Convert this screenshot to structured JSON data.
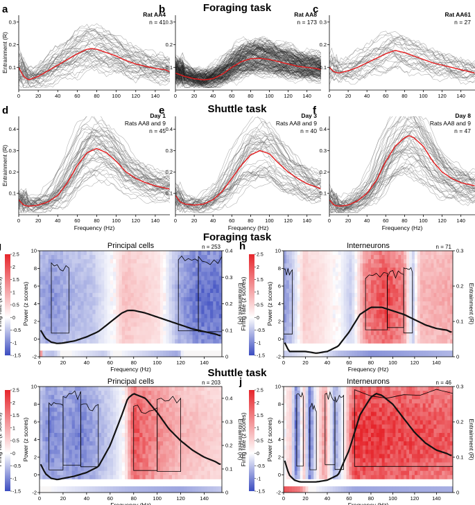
{
  "sections": {
    "foraging_top": "Foraging task",
    "shuttle_top": "Shuttle task",
    "foraging_heat": "Foraging task",
    "shuttle_heat": "Shuttle task"
  },
  "chart_data": [
    {
      "id": "a",
      "type": "line",
      "panel_letter": "a",
      "title_lines": [
        "Rat AA4",
        "n = 41"
      ],
      "xlabel": "",
      "ylabel": "Entrainment (R)",
      "xlim": [
        0,
        155
      ],
      "ylim": [
        0,
        0.33
      ],
      "xticks": [
        0,
        20,
        40,
        60,
        80,
        100,
        120,
        140
      ],
      "yticks": [
        0.1,
        0.2,
        0.3
      ],
      "n_curves": 41,
      "curve_color": "#555555",
      "mean_curve": {
        "color": "#e41a1c",
        "x": [
          0,
          5,
          10,
          20,
          30,
          40,
          50,
          60,
          70,
          75,
          80,
          90,
          100,
          110,
          120,
          130,
          140,
          150,
          155
        ],
        "y": [
          0.1,
          0.06,
          0.045,
          0.06,
          0.085,
          0.11,
          0.135,
          0.16,
          0.18,
          0.183,
          0.18,
          0.165,
          0.15,
          0.13,
          0.115,
          0.105,
          0.095,
          0.09,
          0.08
        ]
      }
    },
    {
      "id": "b",
      "type": "line",
      "panel_letter": "b",
      "title_lines": [
        "Rat AA8",
        "n = 173"
      ],
      "xlabel": "",
      "ylabel": "",
      "xlim": [
        0,
        155
      ],
      "ylim": [
        0,
        0.33
      ],
      "xticks": [
        0,
        20,
        40,
        60,
        80,
        100,
        120,
        140
      ],
      "yticks": [
        0.1,
        0.2,
        0.3
      ],
      "n_curves": 173,
      "curve_color": "#222222",
      "mean_curve": {
        "color": "#e41a1c",
        "x": [
          0,
          10,
          20,
          30,
          40,
          50,
          60,
          70,
          80,
          90,
          100,
          110,
          120,
          130,
          140,
          150,
          155
        ],
        "y": [
          0.075,
          0.06,
          0.05,
          0.045,
          0.05,
          0.07,
          0.1,
          0.125,
          0.138,
          0.14,
          0.135,
          0.125,
          0.115,
          0.105,
          0.1,
          0.095,
          0.09
        ]
      }
    },
    {
      "id": "c",
      "type": "line",
      "panel_letter": "c",
      "title_lines": [
        "Rat AA61",
        "n = 27"
      ],
      "xlabel": "",
      "ylabel": "",
      "xlim": [
        0,
        155
      ],
      "ylim": [
        0,
        0.33
      ],
      "xticks": [
        0,
        20,
        40,
        60,
        80,
        100,
        120,
        140
      ],
      "yticks": [
        0.1,
        0.2,
        0.3
      ],
      "n_curves": 27,
      "curve_color": "#555555",
      "mean_curve": {
        "color": "#e41a1c",
        "x": [
          0,
          5,
          10,
          20,
          30,
          40,
          50,
          60,
          70,
          80,
          90,
          100,
          110,
          120,
          130,
          140,
          150,
          155
        ],
        "y": [
          0.1,
          0.08,
          0.075,
          0.085,
          0.1,
          0.12,
          0.14,
          0.16,
          0.175,
          0.165,
          0.15,
          0.135,
          0.12,
          0.11,
          0.1,
          0.09,
          0.08,
          0.075
        ]
      }
    },
    {
      "id": "d",
      "type": "line",
      "panel_letter": "d",
      "title_lines": [
        "Day 1",
        "Rats AA8 and 9",
        "n = 45"
      ],
      "xlabel": "Frequency (Hz)",
      "ylabel": "Entrainment (R)",
      "xlim": [
        0,
        155
      ],
      "ylim": [
        0,
        0.46
      ],
      "xticks": [
        0,
        20,
        40,
        60,
        80,
        100,
        120,
        140
      ],
      "yticks": [
        0.1,
        0.2,
        0.3,
        0.4
      ],
      "n_curves": 45,
      "curve_color": "#555555",
      "mean_curve": {
        "color": "#e41a1c",
        "x": [
          0,
          5,
          10,
          20,
          30,
          40,
          50,
          60,
          70,
          80,
          90,
          100,
          110,
          120,
          130,
          140,
          150,
          155
        ],
        "y": [
          0.07,
          0.045,
          0.04,
          0.045,
          0.06,
          0.09,
          0.15,
          0.23,
          0.29,
          0.31,
          0.29,
          0.25,
          0.2,
          0.17,
          0.15,
          0.135,
          0.125,
          0.12
        ]
      }
    },
    {
      "id": "e",
      "type": "line",
      "panel_letter": "e",
      "title_lines": [
        "Day 3",
        "Rats AA8 and 9",
        "n = 40"
      ],
      "xlabel": "Frequency (Hz)",
      "ylabel": "",
      "xlim": [
        0,
        155
      ],
      "ylim": [
        0,
        0.46
      ],
      "xticks": [
        0,
        20,
        40,
        60,
        80,
        100,
        120,
        140
      ],
      "yticks": [
        0.1,
        0.2,
        0.3,
        0.4
      ],
      "n_curves": 40,
      "curve_color": "#555555",
      "mean_curve": {
        "color": "#e41a1c",
        "x": [
          0,
          5,
          10,
          20,
          30,
          40,
          50,
          60,
          70,
          80,
          90,
          100,
          110,
          120,
          130,
          140,
          150,
          155
        ],
        "y": [
          0.09,
          0.06,
          0.05,
          0.045,
          0.05,
          0.07,
          0.11,
          0.17,
          0.23,
          0.28,
          0.3,
          0.285,
          0.24,
          0.2,
          0.17,
          0.145,
          0.13,
          0.12
        ]
      }
    },
    {
      "id": "f",
      "type": "line",
      "panel_letter": "f",
      "title_lines": [
        "Day 8",
        "Rats AA8 and 9",
        "n = 47"
      ],
      "xlabel": "Frequency (Hz)",
      "ylabel": "",
      "xlim": [
        0,
        155
      ],
      "ylim": [
        0,
        0.46
      ],
      "xticks": [
        0,
        20,
        40,
        60,
        80,
        100,
        120,
        140
      ],
      "yticks": [
        0.1,
        0.2,
        0.3,
        0.4
      ],
      "n_curves": 47,
      "curve_color": "#555555",
      "mean_curve": {
        "color": "#e41a1c",
        "x": [
          0,
          5,
          10,
          20,
          30,
          40,
          50,
          60,
          70,
          80,
          85,
          90,
          100,
          110,
          120,
          130,
          140,
          150,
          155
        ],
        "y": [
          0.07,
          0.045,
          0.04,
          0.045,
          0.065,
          0.1,
          0.16,
          0.25,
          0.32,
          0.36,
          0.37,
          0.36,
          0.32,
          0.25,
          0.2,
          0.17,
          0.15,
          0.14,
          0.135
        ]
      }
    },
    {
      "id": "g",
      "type": "heatmap",
      "panel_letter": "g",
      "title": "Principal cells",
      "count": "n = 253",
      "xlabel": "Frequency (Hz)",
      "ylabel_left": "Firing rate (z scores)",
      "ylabel_mid": "Power (z scores)",
      "ylabel_right": "Entrainment (R)",
      "xlim": [
        0,
        155
      ],
      "xticks": [
        0,
        20,
        40,
        60,
        80,
        100,
        120,
        140
      ],
      "power_ticks": [
        -2,
        0,
        2,
        4,
        6,
        8,
        10
      ],
      "right_ticks": [
        0,
        0.1,
        0.2,
        0.3,
        0.4
      ],
      "right_max": 0.4,
      "colorbar": {
        "ticks": [
          -1.5,
          -1,
          -0.5,
          0,
          0.5,
          1,
          1.5,
          2,
          2.5
        ],
        "min": -1.5,
        "max": 2.5,
        "low": "#3b4cc0",
        "high": "#e6262c"
      },
      "heat_bands": [
        [
          0,
          "b",
          0.45
        ],
        [
          10,
          "b",
          0.6
        ],
        [
          25,
          "b",
          0.45
        ],
        [
          45,
          "b",
          0.35
        ],
        [
          62,
          "w",
          0.1
        ],
        [
          72,
          "r",
          0.3
        ],
        [
          102,
          "r",
          0.15
        ],
        [
          118,
          "b",
          0.5
        ],
        [
          135,
          "b",
          0.8
        ],
        [
          155,
          "b",
          0.8
        ]
      ],
      "firing_strip": [
        [
          0,
          "r",
          0.8
        ],
        [
          4,
          "b",
          0.3
        ],
        [
          12,
          "b",
          0.35
        ],
        [
          20,
          "w",
          0.1
        ],
        [
          55,
          "b",
          0.3
        ],
        [
          63,
          "w",
          0.1
        ],
        [
          118,
          "b",
          0.5
        ],
        [
          122,
          "w",
          0.1
        ],
        [
          155,
          "w",
          0.1
        ]
      ],
      "mean_curve": {
        "color": "#111111",
        "x": [
          1,
          5,
          10,
          15,
          20,
          30,
          40,
          50,
          60,
          70,
          75,
          80,
          90,
          100,
          110,
          120,
          130,
          140,
          150,
          153
        ],
        "y": [
          0.1,
          0.07,
          0.055,
          0.05,
          0.052,
          0.06,
          0.075,
          0.095,
          0.13,
          0.165,
          0.175,
          0.175,
          0.165,
          0.15,
          0.135,
          0.12,
          0.105,
          0.095,
          0.085,
          0.08
        ]
      }
    },
    {
      "id": "h",
      "type": "heatmap",
      "panel_letter": "h",
      "title": "Interneurons",
      "count": "n = 71",
      "xlabel": "Frequency (Hz)",
      "ylabel_left": "Firing rate (z scores)",
      "ylabel_mid": "Power (z scores)",
      "ylabel_right": "Entrainment (R)",
      "xlim": [
        0,
        155
      ],
      "xticks": [
        0,
        20,
        40,
        60,
        80,
        100,
        120,
        140
      ],
      "power_ticks": [
        -2,
        0,
        2,
        4,
        6,
        8,
        10
      ],
      "right_ticks": [
        0,
        0.1,
        0.2,
        0.3
      ],
      "right_max": 0.3,
      "colorbar": {
        "ticks": [
          -1.5,
          -1,
          -0.5,
          0,
          0.5,
          1,
          1.5,
          2,
          2.5
        ],
        "min": -1.5,
        "max": 2.5,
        "low": "#3b4cc0",
        "high": "#e6262c"
      },
      "heat_bands": [
        [
          0,
          "b",
          0.6
        ],
        [
          8,
          "b",
          0.35
        ],
        [
          18,
          "r",
          0.25
        ],
        [
          35,
          "r",
          0.15
        ],
        [
          50,
          "w",
          0.1
        ],
        [
          62,
          "b",
          0.3
        ],
        [
          75,
          "r",
          0.6
        ],
        [
          95,
          "r",
          0.85
        ],
        [
          110,
          "r",
          0.6
        ],
        [
          118,
          "b",
          0.35
        ],
        [
          125,
          "r",
          0.35
        ],
        [
          155,
          "r",
          0.4
        ]
      ],
      "firing_strip": [
        [
          0,
          "b",
          0.3
        ],
        [
          30,
          "w",
          0.1
        ],
        [
          50,
          "b",
          0.35
        ],
        [
          80,
          "b",
          0.6
        ],
        [
          120,
          "b",
          0.5
        ],
        [
          155,
          "b",
          0.4
        ]
      ],
      "mean_curve": {
        "color": "#111111",
        "x": [
          1,
          5,
          10,
          20,
          30,
          40,
          50,
          60,
          70,
          80,
          90,
          100,
          110,
          120,
          130,
          140,
          150,
          153
        ],
        "y": [
          0.04,
          0.015,
          0.015,
          0.015,
          0.01,
          0.015,
          0.03,
          0.07,
          0.12,
          0.14,
          0.14,
          0.13,
          0.12,
          0.105,
          0.09,
          0.08,
          0.075,
          0.07
        ]
      }
    },
    {
      "id": "i",
      "type": "heatmap",
      "panel_letter": "i",
      "title": "Principal cells",
      "count": "n = 203",
      "xlabel": "Frequency (Hz)",
      "ylabel_left": "Firing rate (z scores)",
      "ylabel_mid": "Power (z scores)",
      "ylabel_right": "Entrainment (R)",
      "xlim": [
        0,
        155
      ],
      "xticks": [
        0,
        20,
        40,
        60,
        80,
        100,
        120,
        140
      ],
      "power_ticks": [
        -2,
        0,
        2,
        4,
        6,
        8,
        10
      ],
      "right_ticks": [
        0,
        0.1,
        0.2,
        0.3,
        0.4
      ],
      "right_max": 0.45,
      "colorbar": {
        "ticks": [
          -1.5,
          -1,
          -0.5,
          0,
          0.5,
          1,
          1.5,
          2,
          2.5
        ],
        "min": -1.5,
        "max": 2.5,
        "low": "#3b4cc0",
        "high": "#e6262c"
      },
      "heat_bands": [
        [
          0,
          "b",
          0.35
        ],
        [
          8,
          "b",
          0.7
        ],
        [
          20,
          "b",
          0.55
        ],
        [
          35,
          "b",
          0.7
        ],
        [
          50,
          "b",
          0.45
        ],
        [
          62,
          "b",
          0.25
        ],
        [
          72,
          "w",
          0.1
        ],
        [
          80,
          "r",
          0.8
        ],
        [
          100,
          "r",
          0.55
        ],
        [
          120,
          "r",
          0.35
        ],
        [
          155,
          "r",
          0.2
        ]
      ],
      "firing_strip": [
        [
          0,
          "w",
          0.1
        ],
        [
          75,
          "b",
          0.4
        ],
        [
          120,
          "b",
          0.5
        ],
        [
          155,
          "b",
          0.3
        ]
      ],
      "mean_curve": {
        "color": "#111111",
        "x": [
          1,
          5,
          10,
          15,
          20,
          30,
          40,
          50,
          60,
          70,
          75,
          80,
          90,
          100,
          110,
          120,
          130,
          140,
          150,
          153
        ],
        "y": [
          0.12,
          0.08,
          0.06,
          0.055,
          0.06,
          0.07,
          0.085,
          0.11,
          0.2,
          0.33,
          0.4,
          0.42,
          0.4,
          0.34,
          0.27,
          0.22,
          0.18,
          0.15,
          0.13,
          0.12
        ]
      }
    },
    {
      "id": "j",
      "type": "heatmap",
      "panel_letter": "j",
      "title": "Interneurons",
      "count": "n = 46",
      "xlabel": "Frequency (Hz)",
      "ylabel_left": "Firing rate (z scores)",
      "ylabel_mid": "Power (z scores)",
      "ylabel_right": "Entrainment (R)",
      "xlim": [
        0,
        155
      ],
      "xticks": [
        0,
        20,
        40,
        60,
        80,
        100,
        120,
        140
      ],
      "power_ticks": [
        -2,
        0,
        2,
        4,
        6,
        8,
        10
      ],
      "right_ticks": [
        0,
        0.1,
        0.2,
        0.3
      ],
      "right_max": 0.3,
      "colorbar": {
        "ticks": [
          -1.5,
          -1,
          -0.5,
          0,
          0.5,
          1,
          1.5,
          2,
          2.5
        ],
        "min": -1.5,
        "max": 2.5,
        "low": "#3b4cc0",
        "high": "#e6262c"
      },
      "heat_bands": [
        [
          0,
          "w",
          0.1
        ],
        [
          6,
          "r",
          0.25
        ],
        [
          12,
          "b",
          0.9
        ],
        [
          18,
          "r",
          0.4
        ],
        [
          24,
          "b",
          0.85
        ],
        [
          30,
          "w",
          0.1
        ],
        [
          38,
          "r",
          0.55
        ],
        [
          47,
          "b",
          0.6
        ],
        [
          55,
          "w",
          0.1
        ],
        [
          65,
          "r",
          0.95
        ],
        [
          155,
          "r",
          0.75
        ]
      ],
      "firing_strip": [
        [
          0,
          "r",
          0.8
        ],
        [
          15,
          "r",
          0.6
        ],
        [
          24,
          "w",
          0.1
        ],
        [
          65,
          "b",
          0.5
        ],
        [
          155,
          "b",
          0.45
        ]
      ],
      "mean_curve": {
        "color": "#111111",
        "x": [
          1,
          5,
          10,
          15,
          20,
          30,
          40,
          50,
          60,
          70,
          80,
          85,
          90,
          100,
          110,
          120,
          130,
          140,
          150,
          153
        ],
        "y": [
          0.09,
          0.05,
          0.035,
          0.03,
          0.03,
          0.03,
          0.035,
          0.05,
          0.12,
          0.22,
          0.27,
          0.28,
          0.275,
          0.25,
          0.21,
          0.17,
          0.14,
          0.12,
          0.11,
          0.105
        ]
      }
    }
  ]
}
